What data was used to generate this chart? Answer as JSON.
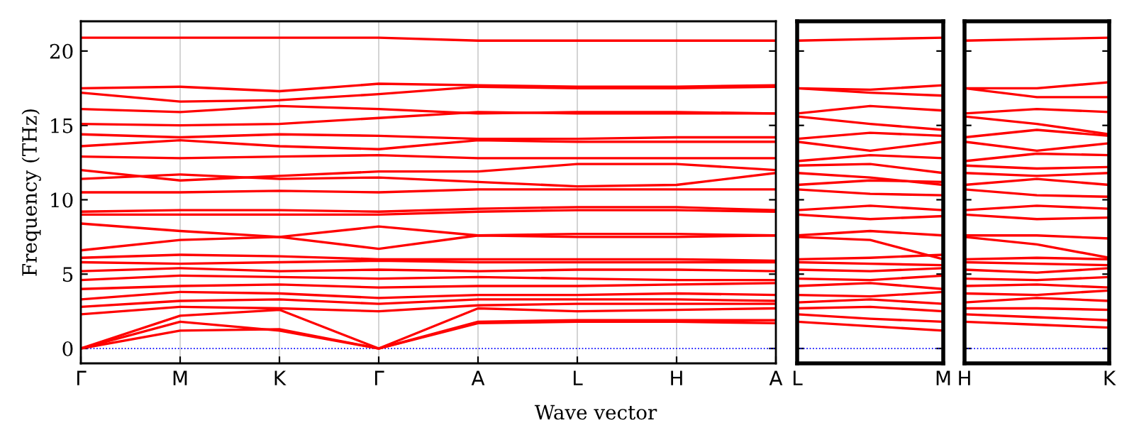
{
  "chart_data": [
    {
      "type": "line",
      "ylabel": "Frequency (THz)",
      "xlabel": "Wave vector",
      "grid": "x",
      "tick_labels": true,
      "line_style": "solid",
      "categories": [
        "Γ",
        "M",
        "K",
        "Γ",
        "A",
        "L",
        "H",
        "A"
      ],
      "ylim": [
        -1,
        22
      ],
      "yticks": [
        0,
        5,
        10,
        15,
        20
      ],
      "ref_lines": [
        {
          "axis": "y",
          "value": 0,
          "color": "#0000ff",
          "line_style": "dotted"
        }
      ],
      "series": [
        {
          "color": "#ff0000",
          "values": [
            0,
            1.2,
            1.3,
            0,
            1.7,
            1.8,
            1.8,
            1.7
          ]
        },
        {
          "color": "#ff0000",
          "values": [
            0,
            1.8,
            1.2,
            0,
            1.8,
            1.9,
            1.9,
            1.9
          ]
        },
        {
          "color": "#ff0000",
          "values": [
            0,
            2.2,
            2.6,
            0,
            2.7,
            2.5,
            2.6,
            2.7
          ]
        },
        {
          "color": "#ff0000",
          "values": [
            2.3,
            2.8,
            2.7,
            2.5,
            2.9,
            3.0,
            3.0,
            3.0
          ]
        },
        {
          "color": "#ff0000",
          "values": [
            2.8,
            3.2,
            3.3,
            3.0,
            3.3,
            3.3,
            3.3,
            3.2
          ]
        },
        {
          "color": "#ff0000",
          "values": [
            3.3,
            3.8,
            3.7,
            3.4,
            3.6,
            3.6,
            3.7,
            3.6
          ]
        },
        {
          "color": "#ff0000",
          "values": [
            4.0,
            4.2,
            4.3,
            4.1,
            4.2,
            4.2,
            4.3,
            4.4
          ]
        },
        {
          "color": "#ff0000",
          "values": [
            4.6,
            4.9,
            4.8,
            4.7,
            4.8,
            4.7,
            4.6,
            4.6
          ]
        },
        {
          "color": "#ff0000",
          "values": [
            5.2,
            5.4,
            5.2,
            5.3,
            5.2,
            5.3,
            5.3,
            5.2
          ]
        },
        {
          "color": "#ff0000",
          "values": [
            5.8,
            5.7,
            5.8,
            5.9,
            5.8,
            5.8,
            5.8,
            5.8
          ]
        },
        {
          "color": "#ff0000",
          "values": [
            6.1,
            6.3,
            6.2,
            6.0,
            6.0,
            6.0,
            6.0,
            5.9
          ]
        },
        {
          "color": "#ff0000",
          "values": [
            6.6,
            7.3,
            7.5,
            6.7,
            7.6,
            7.5,
            7.5,
            7.6
          ]
        },
        {
          "color": "#ff0000",
          "values": [
            8.4,
            7.9,
            7.5,
            8.2,
            7.6,
            7.7,
            7.7,
            7.6
          ]
        },
        {
          "color": "#ff0000",
          "values": [
            9.0,
            9.0,
            9.0,
            9.0,
            9.2,
            9.3,
            9.3,
            9.2
          ]
        },
        {
          "color": "#ff0000",
          "values": [
            9.2,
            9.3,
            9.3,
            9.2,
            9.4,
            9.5,
            9.5,
            9.3
          ]
        },
        {
          "color": "#ff0000",
          "values": [
            10.5,
            10.5,
            10.6,
            10.5,
            10.7,
            10.7,
            10.7,
            10.7
          ]
        },
        {
          "color": "#ff0000",
          "values": [
            11.4,
            11.7,
            11.4,
            11.5,
            11.2,
            10.9,
            11.0,
            11.8
          ]
        },
        {
          "color": "#ff0000",
          "values": [
            12.0,
            11.3,
            11.6,
            11.9,
            11.9,
            12.4,
            12.4,
            12.0
          ]
        },
        {
          "color": "#ff0000",
          "values": [
            12.9,
            12.8,
            12.9,
            13.0,
            12.8,
            12.8,
            12.8,
            12.8
          ]
        },
        {
          "color": "#ff0000",
          "values": [
            13.6,
            14.0,
            13.6,
            13.4,
            14.0,
            13.9,
            13.9,
            13.9
          ]
        },
        {
          "color": "#ff0000",
          "values": [
            14.4,
            14.2,
            14.4,
            14.3,
            14.1,
            14.1,
            14.2,
            14.2
          ]
        },
        {
          "color": "#ff0000",
          "values": [
            15.1,
            15.0,
            15.1,
            15.5,
            15.9,
            15.8,
            15.8,
            15.8
          ]
        },
        {
          "color": "#ff0000",
          "values": [
            16.1,
            15.9,
            16.3,
            16.1,
            15.8,
            15.9,
            15.9,
            15.8
          ]
        },
        {
          "color": "#ff0000",
          "values": [
            17.2,
            16.6,
            16.7,
            17.1,
            17.6,
            17.5,
            17.5,
            17.6
          ]
        },
        {
          "color": "#ff0000",
          "values": [
            17.5,
            17.6,
            17.3,
            17.8,
            17.7,
            17.6,
            17.6,
            17.7
          ]
        },
        {
          "color": "#ff0000",
          "values": [
            20.9,
            20.9,
            20.9,
            20.9,
            20.7,
            20.7,
            20.7,
            20.7
          ]
        }
      ]
    },
    {
      "type": "line",
      "tick_labels": "x",
      "line_style": "solid",
      "categories": [
        "L",
        null,
        "M"
      ],
      "ylim": [
        -1,
        22
      ],
      "yticks": [
        0,
        5,
        10,
        15,
        20
      ],
      "ref_lines": [
        {
          "axis": "y",
          "value": 0,
          "color": "#0000ff",
          "line_style": "dotted"
        }
      ],
      "series": [
        {
          "color": "#ff0000",
          "values": [
            1.8,
            1.5,
            1.2
          ]
        },
        {
          "color": "#ff0000",
          "values": [
            2.3,
            2.0,
            1.8
          ]
        },
        {
          "color": "#ff0000",
          "values": [
            2.7,
            2.8,
            2.5
          ]
        },
        {
          "color": "#ff0000",
          "values": [
            3.1,
            3.3,
            3.0
          ]
        },
        {
          "color": "#ff0000",
          "values": [
            3.6,
            3.5,
            3.8
          ]
        },
        {
          "color": "#ff0000",
          "values": [
            4.2,
            4.4,
            4.0
          ]
        },
        {
          "color": "#ff0000",
          "values": [
            4.7,
            4.6,
            4.9
          ]
        },
        {
          "color": "#ff0000",
          "values": [
            5.3,
            5.2,
            5.4
          ]
        },
        {
          "color": "#ff0000",
          "values": [
            5.8,
            5.7,
            5.6
          ]
        },
        {
          "color": "#ff0000",
          "values": [
            6.0,
            6.1,
            6.3
          ]
        },
        {
          "color": "#ff0000",
          "values": [
            7.5,
            7.3,
            6.0
          ]
        },
        {
          "color": "#ff0000",
          "values": [
            7.6,
            7.9,
            7.6
          ]
        },
        {
          "color": "#ff0000",
          "values": [
            9.0,
            8.7,
            8.9
          ]
        },
        {
          "color": "#ff0000",
          "values": [
            9.3,
            9.6,
            9.3
          ]
        },
        {
          "color": "#ff0000",
          "values": [
            10.7,
            10.4,
            10.3
          ]
        },
        {
          "color": "#ff0000",
          "values": [
            11.0,
            11.3,
            11.2
          ]
        },
        {
          "color": "#ff0000",
          "values": [
            11.8,
            11.5,
            11.0
          ]
        },
        {
          "color": "#ff0000",
          "values": [
            12.3,
            12.4,
            11.8
          ]
        },
        {
          "color": "#ff0000",
          "values": [
            12.6,
            13.0,
            12.8
          ]
        },
        {
          "color": "#ff0000",
          "values": [
            13.9,
            13.3,
            13.9
          ]
        },
        {
          "color": "#ff0000",
          "values": [
            14.1,
            14.5,
            14.3
          ]
        },
        {
          "color": "#ff0000",
          "values": [
            15.6,
            15.1,
            14.7
          ]
        },
        {
          "color": "#ff0000",
          "values": [
            15.8,
            16.3,
            16.0
          ]
        },
        {
          "color": "#ff0000",
          "values": [
            17.5,
            17.2,
            17.0
          ]
        },
        {
          "color": "#ff0000",
          "values": [
            17.5,
            17.4,
            17.7
          ]
        },
        {
          "color": "#ff0000",
          "values": [
            20.7,
            20.8,
            20.9
          ]
        }
      ]
    },
    {
      "type": "line",
      "tick_labels": "x",
      "line_style": "solid",
      "categories": [
        "H",
        null,
        "K"
      ],
      "ylim": [
        -1,
        22
      ],
      "yticks": [
        0,
        5,
        10,
        15,
        20
      ],
      "ref_lines": [
        {
          "axis": "y",
          "value": 0,
          "color": "#0000ff",
          "line_style": "dotted"
        }
      ],
      "series": [
        {
          "color": "#ff0000",
          "values": [
            1.8,
            1.6,
            1.4
          ]
        },
        {
          "color": "#ff0000",
          "values": [
            2.3,
            2.1,
            1.9
          ]
        },
        {
          "color": "#ff0000",
          "values": [
            2.7,
            2.7,
            2.6
          ]
        },
        {
          "color": "#ff0000",
          "values": [
            3.1,
            3.4,
            3.2
          ]
        },
        {
          "color": "#ff0000",
          "values": [
            3.7,
            3.6,
            3.9
          ]
        },
        {
          "color": "#ff0000",
          "values": [
            4.2,
            4.3,
            4.1
          ]
        },
        {
          "color": "#ff0000",
          "values": [
            4.7,
            4.6,
            4.8
          ]
        },
        {
          "color": "#ff0000",
          "values": [
            5.3,
            5.1,
            5.4
          ]
        },
        {
          "color": "#ff0000",
          "values": [
            5.8,
            5.7,
            5.6
          ]
        },
        {
          "color": "#ff0000",
          "values": [
            6.0,
            6.1,
            6.0
          ]
        },
        {
          "color": "#ff0000",
          "values": [
            7.5,
            7.0,
            6.1
          ]
        },
        {
          "color": "#ff0000",
          "values": [
            7.6,
            7.6,
            7.4
          ]
        },
        {
          "color": "#ff0000",
          "values": [
            9.0,
            8.7,
            8.8
          ]
        },
        {
          "color": "#ff0000",
          "values": [
            9.3,
            9.6,
            9.4
          ]
        },
        {
          "color": "#ff0000",
          "values": [
            10.7,
            10.3,
            10.2
          ]
        },
        {
          "color": "#ff0000",
          "values": [
            11.0,
            11.4,
            11.0
          ]
        },
        {
          "color": "#ff0000",
          "values": [
            11.8,
            11.6,
            11.8
          ]
        },
        {
          "color": "#ff0000",
          "values": [
            12.3,
            12.1,
            12.2
          ]
        },
        {
          "color": "#ff0000",
          "values": [
            12.6,
            13.1,
            13.0
          ]
        },
        {
          "color": "#ff0000",
          "values": [
            13.9,
            13.3,
            13.8
          ]
        },
        {
          "color": "#ff0000",
          "values": [
            14.2,
            14.7,
            14.3
          ]
        },
        {
          "color": "#ff0000",
          "values": [
            15.6,
            15.1,
            14.4
          ]
        },
        {
          "color": "#ff0000",
          "values": [
            15.8,
            16.1,
            15.9
          ]
        },
        {
          "color": "#ff0000",
          "values": [
            17.5,
            16.9,
            16.9
          ]
        },
        {
          "color": "#ff0000",
          "values": [
            17.5,
            17.5,
            17.9
          ]
        },
        {
          "color": "#ff0000",
          "values": [
            20.7,
            20.8,
            20.9
          ]
        }
      ]
    }
  ]
}
